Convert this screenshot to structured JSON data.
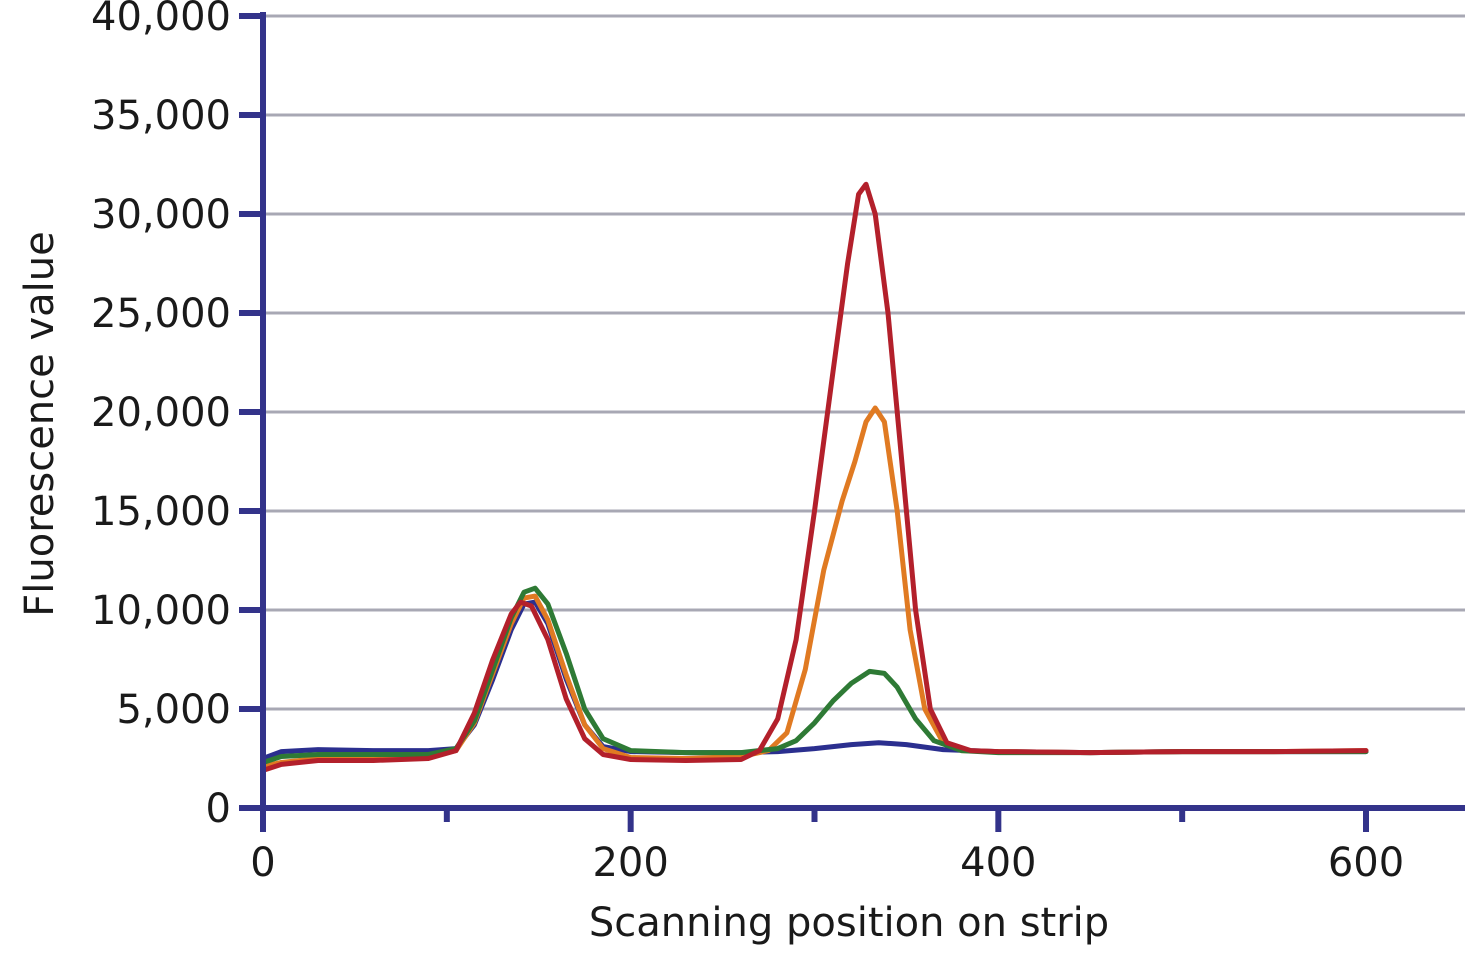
{
  "chart_data": {
    "type": "line",
    "title": "",
    "xlabel": "Scanning position on strip",
    "ylabel": "Fluorescence value",
    "xlim": [
      0,
      650
    ],
    "ylim": [
      0,
      40000
    ],
    "x_ticks": [
      0,
      200,
      400,
      600
    ],
    "x_tick_labels": [
      "0",
      "200",
      "400",
      "600"
    ],
    "x_minor_ticks": [
      100,
      300,
      500
    ],
    "y_ticks": [
      0,
      5000,
      10000,
      15000,
      20000,
      25000,
      30000,
      35000,
      40000
    ],
    "y_tick_labels": [
      "0",
      "5,000",
      "10,000",
      "15,000",
      "20,000",
      "25,000",
      "30,000",
      "35,000",
      "40,000"
    ],
    "grid": "horizontal",
    "legend": "none",
    "series": [
      {
        "color": "#2b2f8f",
        "points": [
          [
            0,
            2500
          ],
          [
            10,
            2850
          ],
          [
            30,
            2950
          ],
          [
            60,
            2900
          ],
          [
            90,
            2900
          ],
          [
            105,
            3000
          ],
          [
            115,
            4200
          ],
          [
            125,
            6500
          ],
          [
            135,
            9000
          ],
          [
            142,
            10300
          ],
          [
            148,
            10400
          ],
          [
            155,
            9300
          ],
          [
            165,
            6500
          ],
          [
            175,
            4200
          ],
          [
            185,
            3100
          ],
          [
            200,
            2850
          ],
          [
            230,
            2800
          ],
          [
            260,
            2800
          ],
          [
            280,
            2850
          ],
          [
            300,
            3000
          ],
          [
            320,
            3200
          ],
          [
            335,
            3300
          ],
          [
            350,
            3200
          ],
          [
            370,
            2950
          ],
          [
            400,
            2850
          ],
          [
            450,
            2800
          ],
          [
            500,
            2850
          ],
          [
            550,
            2850
          ],
          [
            600,
            2850
          ]
        ]
      },
      {
        "color": "#e07a22",
        "points": [
          [
            0,
            2100
          ],
          [
            10,
            2300
          ],
          [
            30,
            2500
          ],
          [
            60,
            2500
          ],
          [
            90,
            2600
          ],
          [
            105,
            2900
          ],
          [
            115,
            4300
          ],
          [
            125,
            6800
          ],
          [
            135,
            9300
          ],
          [
            142,
            10600
          ],
          [
            148,
            10700
          ],
          [
            155,
            9500
          ],
          [
            165,
            6700
          ],
          [
            175,
            4200
          ],
          [
            185,
            3000
          ],
          [
            200,
            2550
          ],
          [
            230,
            2500
          ],
          [
            260,
            2600
          ],
          [
            275,
            2900
          ],
          [
            285,
            3800
          ],
          [
            295,
            7000
          ],
          [
            305,
            12000
          ],
          [
            315,
            15500
          ],
          [
            322,
            17500
          ],
          [
            328,
            19500
          ],
          [
            333,
            20200
          ],
          [
            338,
            19500
          ],
          [
            345,
            15000
          ],
          [
            352,
            9000
          ],
          [
            360,
            5000
          ],
          [
            370,
            3300
          ],
          [
            380,
            2900
          ],
          [
            400,
            2850
          ],
          [
            450,
            2800
          ],
          [
            500,
            2850
          ],
          [
            550,
            2850
          ],
          [
            600,
            2900
          ]
        ]
      },
      {
        "color": "#2e7a35",
        "points": [
          [
            0,
            2300
          ],
          [
            10,
            2600
          ],
          [
            30,
            2700
          ],
          [
            60,
            2700
          ],
          [
            90,
            2700
          ],
          [
            105,
            3000
          ],
          [
            115,
            4400
          ],
          [
            125,
            7000
          ],
          [
            135,
            9600
          ],
          [
            142,
            10900
          ],
          [
            148,
            11100
          ],
          [
            155,
            10300
          ],
          [
            165,
            7800
          ],
          [
            175,
            5000
          ],
          [
            185,
            3500
          ],
          [
            200,
            2900
          ],
          [
            230,
            2800
          ],
          [
            260,
            2800
          ],
          [
            280,
            3000
          ],
          [
            290,
            3400
          ],
          [
            300,
            4300
          ],
          [
            310,
            5400
          ],
          [
            320,
            6300
          ],
          [
            330,
            6900
          ],
          [
            338,
            6800
          ],
          [
            345,
            6100
          ],
          [
            355,
            4500
          ],
          [
            365,
            3400
          ],
          [
            380,
            2900
          ],
          [
            400,
            2800
          ],
          [
            450,
            2800
          ],
          [
            500,
            2850
          ],
          [
            550,
            2850
          ],
          [
            600,
            2850
          ]
        ]
      },
      {
        "color": "#b3202b",
        "points": [
          [
            0,
            1900
          ],
          [
            10,
            2200
          ],
          [
            30,
            2400
          ],
          [
            60,
            2400
          ],
          [
            90,
            2500
          ],
          [
            105,
            2900
          ],
          [
            115,
            4800
          ],
          [
            125,
            7500
          ],
          [
            135,
            9800
          ],
          [
            140,
            10400
          ],
          [
            146,
            10200
          ],
          [
            155,
            8500
          ],
          [
            165,
            5500
          ],
          [
            175,
            3500
          ],
          [
            185,
            2700
          ],
          [
            200,
            2450
          ],
          [
            230,
            2400
          ],
          [
            260,
            2450
          ],
          [
            270,
            2900
          ],
          [
            280,
            4500
          ],
          [
            290,
            8500
          ],
          [
            300,
            15000
          ],
          [
            310,
            22000
          ],
          [
            318,
            27500
          ],
          [
            324,
            31000
          ],
          [
            328,
            31500
          ],
          [
            333,
            30000
          ],
          [
            340,
            25000
          ],
          [
            347,
            18000
          ],
          [
            355,
            10000
          ],
          [
            363,
            5000
          ],
          [
            372,
            3300
          ],
          [
            385,
            2900
          ],
          [
            400,
            2850
          ],
          [
            450,
            2800
          ],
          [
            500,
            2850
          ],
          [
            550,
            2850
          ],
          [
            600,
            2900
          ]
        ]
      }
    ]
  }
}
